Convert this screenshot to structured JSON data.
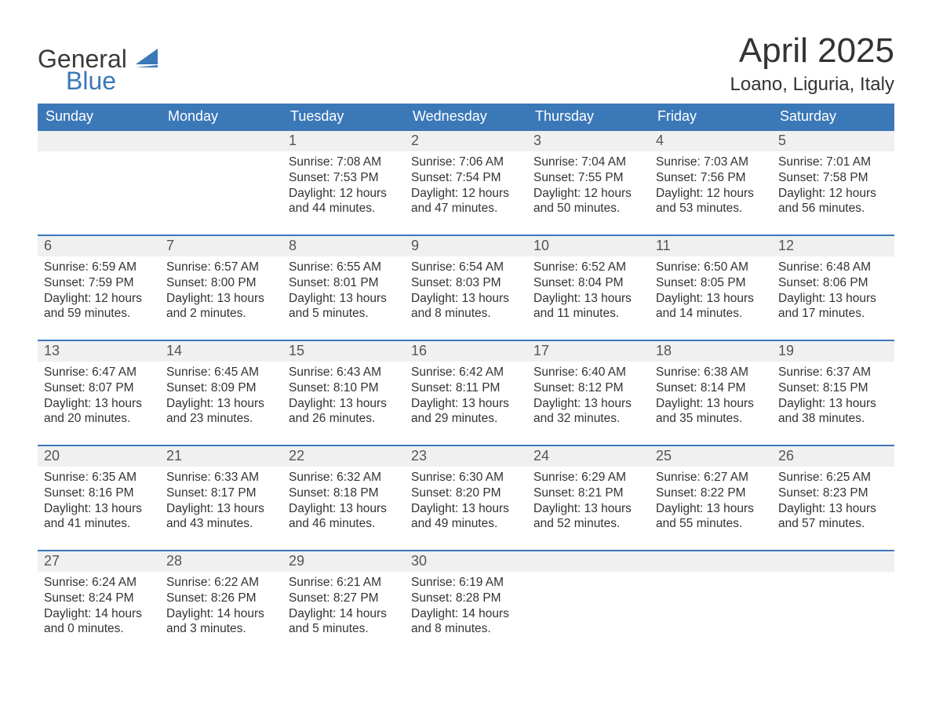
{
  "logo": {
    "word1": "General",
    "word2": "Blue",
    "icon_color": "#3b78b8"
  },
  "title": "April 2025",
  "location": "Loano, Liguria, Italy",
  "colors": {
    "header_bg": "#3b78b8",
    "header_text": "#ffffff",
    "daynum_bg": "#f0f0f0",
    "row_border": "#3b78b8",
    "body_text": "#333333"
  },
  "font": {
    "family": "Arial",
    "title_size_pt": 33,
    "location_size_pt": 18,
    "weekday_size_pt": 14,
    "daynum_size_pt": 14,
    "body_size_pt": 12
  },
  "weekdays": [
    "Sunday",
    "Monday",
    "Tuesday",
    "Wednesday",
    "Thursday",
    "Friday",
    "Saturday"
  ],
  "labels": {
    "sunrise": "Sunrise:",
    "sunset": "Sunset:",
    "daylight": "Daylight:"
  },
  "weeks": [
    [
      {
        "day": "",
        "sunrise": "",
        "sunset": "",
        "daylight": ""
      },
      {
        "day": "",
        "sunrise": "",
        "sunset": "",
        "daylight": ""
      },
      {
        "day": "1",
        "sunrise": "7:08 AM",
        "sunset": "7:53 PM",
        "daylight": "12 hours and 44 minutes."
      },
      {
        "day": "2",
        "sunrise": "7:06 AM",
        "sunset": "7:54 PM",
        "daylight": "12 hours and 47 minutes."
      },
      {
        "day": "3",
        "sunrise": "7:04 AM",
        "sunset": "7:55 PM",
        "daylight": "12 hours and 50 minutes."
      },
      {
        "day": "4",
        "sunrise": "7:03 AM",
        "sunset": "7:56 PM",
        "daylight": "12 hours and 53 minutes."
      },
      {
        "day": "5",
        "sunrise": "7:01 AM",
        "sunset": "7:58 PM",
        "daylight": "12 hours and 56 minutes."
      }
    ],
    [
      {
        "day": "6",
        "sunrise": "6:59 AM",
        "sunset": "7:59 PM",
        "daylight": "12 hours and 59 minutes."
      },
      {
        "day": "7",
        "sunrise": "6:57 AM",
        "sunset": "8:00 PM",
        "daylight": "13 hours and 2 minutes."
      },
      {
        "day": "8",
        "sunrise": "6:55 AM",
        "sunset": "8:01 PM",
        "daylight": "13 hours and 5 minutes."
      },
      {
        "day": "9",
        "sunrise": "6:54 AM",
        "sunset": "8:03 PM",
        "daylight": "13 hours and 8 minutes."
      },
      {
        "day": "10",
        "sunrise": "6:52 AM",
        "sunset": "8:04 PM",
        "daylight": "13 hours and 11 minutes."
      },
      {
        "day": "11",
        "sunrise": "6:50 AM",
        "sunset": "8:05 PM",
        "daylight": "13 hours and 14 minutes."
      },
      {
        "day": "12",
        "sunrise": "6:48 AM",
        "sunset": "8:06 PM",
        "daylight": "13 hours and 17 minutes."
      }
    ],
    [
      {
        "day": "13",
        "sunrise": "6:47 AM",
        "sunset": "8:07 PM",
        "daylight": "13 hours and 20 minutes."
      },
      {
        "day": "14",
        "sunrise": "6:45 AM",
        "sunset": "8:09 PM",
        "daylight": "13 hours and 23 minutes."
      },
      {
        "day": "15",
        "sunrise": "6:43 AM",
        "sunset": "8:10 PM",
        "daylight": "13 hours and 26 minutes."
      },
      {
        "day": "16",
        "sunrise": "6:42 AM",
        "sunset": "8:11 PM",
        "daylight": "13 hours and 29 minutes."
      },
      {
        "day": "17",
        "sunrise": "6:40 AM",
        "sunset": "8:12 PM",
        "daylight": "13 hours and 32 minutes."
      },
      {
        "day": "18",
        "sunrise": "6:38 AM",
        "sunset": "8:14 PM",
        "daylight": "13 hours and 35 minutes."
      },
      {
        "day": "19",
        "sunrise": "6:37 AM",
        "sunset": "8:15 PM",
        "daylight": "13 hours and 38 minutes."
      }
    ],
    [
      {
        "day": "20",
        "sunrise": "6:35 AM",
        "sunset": "8:16 PM",
        "daylight": "13 hours and 41 minutes."
      },
      {
        "day": "21",
        "sunrise": "6:33 AM",
        "sunset": "8:17 PM",
        "daylight": "13 hours and 43 minutes."
      },
      {
        "day": "22",
        "sunrise": "6:32 AM",
        "sunset": "8:18 PM",
        "daylight": "13 hours and 46 minutes."
      },
      {
        "day": "23",
        "sunrise": "6:30 AM",
        "sunset": "8:20 PM",
        "daylight": "13 hours and 49 minutes."
      },
      {
        "day": "24",
        "sunrise": "6:29 AM",
        "sunset": "8:21 PM",
        "daylight": "13 hours and 52 minutes."
      },
      {
        "day": "25",
        "sunrise": "6:27 AM",
        "sunset": "8:22 PM",
        "daylight": "13 hours and 55 minutes."
      },
      {
        "day": "26",
        "sunrise": "6:25 AM",
        "sunset": "8:23 PM",
        "daylight": "13 hours and 57 minutes."
      }
    ],
    [
      {
        "day": "27",
        "sunrise": "6:24 AM",
        "sunset": "8:24 PM",
        "daylight": "14 hours and 0 minutes."
      },
      {
        "day": "28",
        "sunrise": "6:22 AM",
        "sunset": "8:26 PM",
        "daylight": "14 hours and 3 minutes."
      },
      {
        "day": "29",
        "sunrise": "6:21 AM",
        "sunset": "8:27 PM",
        "daylight": "14 hours and 5 minutes."
      },
      {
        "day": "30",
        "sunrise": "6:19 AM",
        "sunset": "8:28 PM",
        "daylight": "14 hours and 8 minutes."
      },
      {
        "day": "",
        "sunrise": "",
        "sunset": "",
        "daylight": ""
      },
      {
        "day": "",
        "sunrise": "",
        "sunset": "",
        "daylight": ""
      },
      {
        "day": "",
        "sunrise": "",
        "sunset": "",
        "daylight": ""
      }
    ]
  ]
}
